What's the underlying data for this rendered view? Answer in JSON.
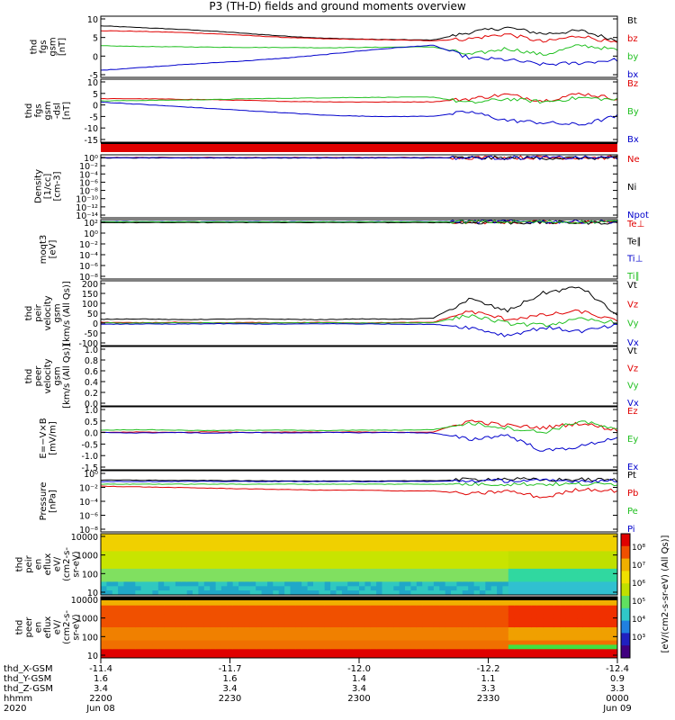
{
  "title": "P3 (TH-D) fields and ground moments overview",
  "colors": {
    "black": "#000000",
    "red": "#e00000",
    "green": "#22c022",
    "blue": "#0000cc"
  },
  "chart_data": [
    {
      "type": "line",
      "panel": "fgs_gsm",
      "ylabel": [
        "thd",
        "fgs",
        "gsm",
        "[nT]"
      ],
      "yticks": [
        "10",
        "5",
        "0",
        "-5"
      ],
      "ylim": [
        -8,
        11
      ],
      "series": [
        {
          "name": "Bt",
          "color": "black",
          "values": [
            8.0,
            7.5,
            7.0,
            6.4,
            5.6,
            4.8,
            4.2,
            3.9,
            3.7,
            3.6,
            6.0,
            7.5,
            5.5,
            6.5,
            3.5
          ]
        },
        {
          "name": "bz",
          "color": "red",
          "values": [
            6.5,
            6.3,
            6.0,
            5.6,
            5.0,
            4.4,
            4.0,
            3.8,
            3.6,
            3.4,
            4.0,
            5.5,
            3.0,
            5.0,
            2.5
          ]
        },
        {
          "name": "by",
          "color": "green",
          "values": [
            1.8,
            1.6,
            1.5,
            1.4,
            1.3,
            1.3,
            1.2,
            1.3,
            1.4,
            1.5,
            -1.0,
            1.0,
            -1.0,
            2.0,
            0.5
          ]
        },
        {
          "name": "bx",
          "color": "blue",
          "values": [
            -5.8,
            -5.0,
            -4.2,
            -3.5,
            -2.8,
            -2.0,
            -1.0,
            0.2,
            1.2,
            2.0,
            -2.0,
            -2.5,
            -4.0,
            -3.5,
            -2.5
          ]
        }
      ]
    },
    {
      "type": "line",
      "panel": "fgs_gsm_dsl",
      "ylabel": [
        "thd",
        "fgs",
        "gsm",
        "-dsl",
        "[nT]"
      ],
      "yticks": [
        "10",
        "5",
        "0",
        "-5",
        "-10",
        "-15"
      ],
      "ylim": [
        -18,
        11
      ],
      "series": [
        {
          "name": "Bz",
          "color": "red",
          "values": [
            2.0,
            2.0,
            1.8,
            1.6,
            1.2,
            0.8,
            0.6,
            0.5,
            0.5,
            0.6,
            2.0,
            4.0,
            1.0,
            4.5,
            2.0
          ]
        },
        {
          "name": "By",
          "color": "green",
          "values": [
            1.0,
            1.2,
            1.4,
            1.6,
            2.0,
            2.2,
            2.4,
            2.6,
            2.7,
            2.8,
            0.0,
            2.0,
            0.5,
            2.5,
            1.5
          ]
        },
        {
          "name": "Bx",
          "color": "blue",
          "values": [
            0.5,
            -0.5,
            -1.5,
            -2.5,
            -3.5,
            -4.5,
            -5.5,
            -6.0,
            -6.2,
            -6.0,
            -4.0,
            -8.0,
            -9.0,
            -10.0,
            -6.0
          ]
        }
      ]
    },
    {
      "type": "line",
      "panel": "density",
      "ylabel": [
        "Density",
        "[1/cc]",
        "[cm-3]"
      ],
      "yticks": [
        "10⁰",
        "10⁻²",
        "10⁻⁴",
        "10⁻⁶",
        "10⁻⁸",
        "10⁻¹⁰",
        "10⁻¹²",
        "10⁻¹⁴"
      ],
      "ylim": [
        -15,
        1
      ],
      "log": true,
      "series": [
        {
          "name": "Ne",
          "color": "red",
          "values": [
            0.3,
            0.3,
            0.3,
            0.3,
            0.3,
            0.3,
            0.3,
            0.3,
            0.3,
            0.3,
            0.3,
            0.3,
            0.3,
            0.3,
            0.3
          ]
        },
        {
          "name": "Ni",
          "color": "black",
          "values": [
            0.2,
            0.2,
            0.2,
            0.2,
            0.2,
            0.2,
            0.2,
            0.2,
            0.2,
            0.2,
            0.2,
            0.2,
            0.2,
            0.2,
            0.2
          ]
        },
        {
          "name": "Npot",
          "color": "blue",
          "values": [
            0.25,
            0.25,
            0.25,
            0.25,
            0.25,
            0.25,
            0.25,
            0.25,
            0.25,
            0.25,
            0.25,
            0.25,
            0.25,
            0.25,
            0.25
          ]
        }
      ]
    },
    {
      "type": "line",
      "panel": "temperature",
      "ylabel": [
        "moqt3",
        "[eV]"
      ],
      "yticks": [
        "10²",
        "10⁰",
        "10⁻²",
        "10⁻⁴",
        "10⁻⁶",
        "10⁻⁸"
      ],
      "ylim": [
        -9,
        3
      ],
      "log": true,
      "series": [
        {
          "name": "Te⊥",
          "color": "red",
          "values": [
            2.5,
            2.5,
            2.5,
            2.5,
            2.5,
            2.5,
            2.5,
            2.5,
            2.5,
            2.5,
            2.5,
            2.5,
            2.5,
            2.5,
            2.5
          ]
        },
        {
          "name": "Te∥",
          "color": "black",
          "values": [
            2.4,
            2.4,
            2.4,
            2.4,
            2.4,
            2.4,
            2.4,
            2.4,
            2.4,
            2.4,
            2.4,
            2.4,
            2.4,
            2.4,
            2.4
          ]
        },
        {
          "name": "Ti⊥",
          "color": "blue",
          "values": [
            2.6,
            2.6,
            2.6,
            2.6,
            2.6,
            2.6,
            2.6,
            2.6,
            2.6,
            2.6,
            2.6,
            2.6,
            2.6,
            2.6,
            2.6
          ]
        },
        {
          "name": "Ti∥",
          "color": "green",
          "values": [
            2.55,
            2.55,
            2.55,
            2.55,
            2.55,
            2.55,
            2.55,
            2.55,
            2.55,
            2.55,
            2.55,
            2.55,
            2.55,
            2.55,
            2.55
          ]
        }
      ]
    },
    {
      "type": "line",
      "panel": "peir_velocity",
      "ylabel": [
        "thd",
        "peir",
        "velocity",
        "gsm",
        "[km/s (All Qs)]"
      ],
      "yticks": [
        "200",
        "150",
        "100",
        "50",
        "0",
        "-50",
        "-100"
      ],
      "ylim": [
        -110,
        210
      ],
      "series": [
        {
          "name": "Vt",
          "color": "black",
          "values": [
            20,
            22,
            18,
            20,
            22,
            20,
            18,
            22,
            20,
            25,
            120,
            60,
            150,
            180,
            40
          ]
        },
        {
          "name": "Vz",
          "color": "red",
          "values": [
            5,
            3,
            5,
            2,
            4,
            3,
            5,
            2,
            4,
            5,
            60,
            20,
            40,
            60,
            10
          ]
        },
        {
          "name": "Vy",
          "color": "green",
          "values": [
            2,
            1,
            3,
            2,
            1,
            2,
            3,
            1,
            2,
            3,
            40,
            0,
            -10,
            20,
            5
          ]
        },
        {
          "name": "Vx",
          "color": "blue",
          "values": [
            -5,
            -3,
            -4,
            -2,
            -3,
            -4,
            -2,
            -3,
            -4,
            -5,
            -20,
            -60,
            -20,
            -40,
            -10
          ]
        }
      ]
    },
    {
      "type": "line",
      "panel": "peer_velocity",
      "ylabel": [
        "thd",
        "peer",
        "velocity",
        "gsm",
        "[km/s (All Qs)]"
      ],
      "yticks": [
        "1.0",
        "0.8",
        "0.6",
        "0.4",
        "0.2",
        "0.0"
      ],
      "ylim": [
        0,
        1
      ],
      "series": [
        {
          "name": "Vt",
          "color": "black",
          "values": []
        },
        {
          "name": "Vz",
          "color": "red",
          "values": []
        },
        {
          "name": "Vy",
          "color": "green",
          "values": []
        },
        {
          "name": "Vx",
          "color": "blue",
          "values": []
        }
      ]
    },
    {
      "type": "line",
      "panel": "efield",
      "ylabel": [
        "E=−V×B",
        "[mV/m]"
      ],
      "yticks": [
        "1.0",
        "0.5",
        "0.0",
        "-0.5",
        "-1.0",
        "-1.5"
      ],
      "ylim": [
        -1.6,
        1.1
      ],
      "series": [
        {
          "name": "Ez",
          "color": "red",
          "values": [
            0.0,
            0.02,
            0.0,
            0.03,
            0.0,
            0.02,
            0.01,
            0.02,
            0.0,
            0.02,
            0.5,
            0.3,
            0.2,
            0.4,
            0.1
          ]
        },
        {
          "name": "Ey",
          "color": "green",
          "values": [
            0.1,
            0.12,
            0.1,
            0.08,
            0.1,
            0.1,
            0.08,
            0.1,
            0.1,
            0.12,
            0.4,
            0.2,
            0.0,
            0.5,
            0.1
          ]
        },
        {
          "name": "Ex",
          "color": "blue",
          "values": [
            0.0,
            -0.02,
            0.0,
            -0.03,
            0.0,
            -0.02,
            0.0,
            -0.01,
            0.0,
            -0.02,
            -0.3,
            -0.1,
            -0.8,
            -0.6,
            -0.2
          ]
        }
      ]
    },
    {
      "type": "line",
      "panel": "pressure",
      "ylabel": [
        "Pressure",
        "[nPa]"
      ],
      "yticks": [
        "10⁰",
        "10⁻²",
        "10⁻⁴",
        "10⁻⁶",
        "10⁻⁸"
      ],
      "ylim": [
        -8.6,
        0.5
      ],
      "log": true,
      "series": [
        {
          "name": "Pt",
          "color": "black",
          "values": [
            -0.9,
            -0.9,
            -0.95,
            -0.95,
            -1.0,
            -1.0,
            -1.05,
            -1.05,
            -1.0,
            -1.0,
            -0.8,
            -0.7,
            -0.9,
            -0.8,
            -0.9
          ]
        },
        {
          "name": "Pb",
          "color": "red",
          "values": [
            -1.8,
            -1.9,
            -2.0,
            -2.1,
            -2.2,
            -2.3,
            -2.4,
            -2.4,
            -2.5,
            -2.5,
            -3.0,
            -2.5,
            -3.5,
            -2.2,
            -2.5
          ]
        },
        {
          "name": "Pe",
          "color": "green",
          "values": [
            -1.5,
            -1.5,
            -1.5,
            -1.5,
            -1.5,
            -1.5,
            -1.5,
            -1.5,
            -1.5,
            -1.5,
            -1.5,
            -1.5,
            -1.5,
            -1.5,
            -1.5
          ]
        },
        {
          "name": "Pi",
          "color": "blue",
          "values": [
            -1.1,
            -1.1,
            -1.1,
            -1.1,
            -1.1,
            -1.1,
            -1.1,
            -1.1,
            -1.1,
            -1.1,
            -1.0,
            -1.0,
            -1.0,
            -1.0,
            -1.0
          ]
        }
      ]
    },
    {
      "type": "heatmap",
      "panel": "peir_eflux",
      "ylabel": [
        "thd",
        "peir",
        "en",
        "eflux",
        "eV/",
        "(cm2-s-",
        "sr-eV)"
      ],
      "yticks": [
        "10000",
        "1000",
        "100",
        "10"
      ],
      "ylim": [
        1,
        4.2
      ],
      "log": true
    },
    {
      "type": "heatmap",
      "panel": "peer_eflux",
      "ylabel": [
        "thd",
        "peer",
        "en",
        "eflux",
        "eV/",
        "(cm2-s-",
        "sr-eV)"
      ],
      "yticks": [
        "10000",
        "1000",
        "100",
        "10"
      ],
      "ylim": [
        1,
        4.2
      ],
      "log": true
    }
  ],
  "colorbar": {
    "label": "[eV/(cm2-s-sr-eV) (All Qs)]",
    "top_label": "10⁸",
    "ticks": [
      "10⁸",
      "10⁷",
      "10⁶",
      "10⁵",
      "10⁴",
      "10³"
    ]
  },
  "xaxis": {
    "rows": [
      {
        "label": "thd_X-GSM",
        "values": [
          "-11.4",
          "-11.7",
          "-12.0",
          "-12.2",
          "-12.4"
        ]
      },
      {
        "label": "thd_Y-GSM",
        "values": [
          "1.6",
          "1.6",
          "1.4",
          "1.1",
          "0.9"
        ]
      },
      {
        "label": "thd_Z-GSM",
        "values": [
          "3.4",
          "3.4",
          "3.4",
          "3.3",
          "3.3"
        ]
      },
      {
        "label": "hhmm",
        "values": [
          "2200",
          "2230",
          "2300",
          "2330",
          "0000"
        ]
      },
      {
        "label": "2020",
        "values": [
          "Jun 08",
          "",
          "",
          "",
          "Jun 09"
        ]
      }
    ]
  }
}
